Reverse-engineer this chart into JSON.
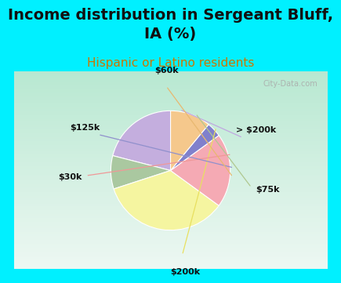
{
  "title": "Income distribution in Sergeant Bluff,\nIA (%)",
  "subtitle": "Hispanic or Latino residents",
  "labels": [
    "> $200k",
    "$75k",
    "$200k",
    "$30k",
    "$125k",
    "$60k"
  ],
  "sizes": [
    21,
    9,
    35,
    20,
    4,
    11
  ],
  "colors": [
    "#c4aede",
    "#aac8a0",
    "#f5f5a0",
    "#f5aab4",
    "#8080cc",
    "#f5c88c"
  ],
  "line_colors": [
    "#c0a8e0",
    "#b0c890",
    "#e8e060",
    "#f09898",
    "#9090cc",
    "#e8b870"
  ],
  "startangle": 90,
  "bg_cyan": "#00f0ff",
  "bg_chart_top": "#f0f8f0",
  "bg_chart_bottom": "#b8e8d8",
  "watermark": "City-Data.com",
  "title_fontsize": 14,
  "subtitle_fontsize": 11,
  "subtitle_color": "#cc7700"
}
